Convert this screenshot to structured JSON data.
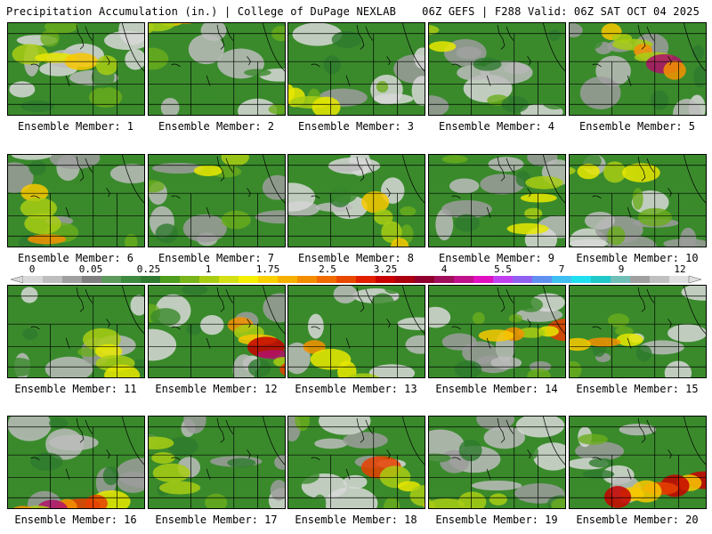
{
  "header": {
    "left": "Precipitation Accumulation (in.) | College of DuPage NEXLAB",
    "right": "06Z GEFS | F288 Valid: 06Z SAT OCT 04 2025"
  },
  "colorbar": {
    "tick_labels": [
      "0",
      "0.05",
      "0.25",
      "1",
      "1.75",
      "2.5",
      "3.25",
      "4",
      "5.5",
      "7",
      "9",
      "12"
    ],
    "colors": [
      "#d8d8d8",
      "#bebebe",
      "#a0a0a0",
      "#7f7f7f",
      "#5c9a5c",
      "#3e8a3e",
      "#2e7a2e",
      "#4e9e1e",
      "#78b41a",
      "#a8cc14",
      "#d2e014",
      "#f4f000",
      "#f8d000",
      "#f6b000",
      "#f48c00",
      "#f06a00",
      "#e84800",
      "#e02000",
      "#c80000",
      "#aa0010",
      "#90002e",
      "#a0105a",
      "#c0108c",
      "#e010c0",
      "#c040f0",
      "#9060f0",
      "#6090f0",
      "#40c0f0",
      "#20e0f0",
      "#20c8c8",
      "#70c0b8",
      "#a0a0a0",
      "#c0c0c0",
      "#e0e0e0"
    ]
  },
  "members": [
    {
      "label": "Ensemble Member: 1",
      "intensity": 0.15
    },
    {
      "label": "Ensemble Member: 2",
      "intensity": 0.45
    },
    {
      "label": "Ensemble Member: 3",
      "intensity": 0.4
    },
    {
      "label": "Ensemble Member: 4",
      "intensity": 0.1
    },
    {
      "label": "Ensemble Member: 5",
      "intensity": 0.5
    },
    {
      "label": "Ensemble Member: 6",
      "intensity": 0.2
    },
    {
      "label": "Ensemble Member: 7",
      "intensity": 0.1
    },
    {
      "label": "Ensemble Member: 8",
      "intensity": 0.15
    },
    {
      "label": "Ensemble Member: 9",
      "intensity": 0.2
    },
    {
      "label": "Ensemble Member: 10",
      "intensity": 0.15
    },
    {
      "label": "Ensemble Member: 11",
      "intensity": 0.25
    },
    {
      "label": "Ensemble Member: 12",
      "intensity": 0.45
    },
    {
      "label": "Ensemble Member: 13",
      "intensity": 0.2
    },
    {
      "label": "Ensemble Member: 14",
      "intensity": 0.4
    },
    {
      "label": "Ensemble Member: 15",
      "intensity": 0.2
    },
    {
      "label": "Ensemble Member: 16",
      "intensity": 0.45
    },
    {
      "label": "Ensemble Member: 17",
      "intensity": 0.15
    },
    {
      "label": "Ensemble Member: 18",
      "intensity": 0.3
    },
    {
      "label": "Ensemble Member: 19",
      "intensity": 0.15
    },
    {
      "label": "Ensemble Member: 20",
      "intensity": 0.45
    }
  ]
}
